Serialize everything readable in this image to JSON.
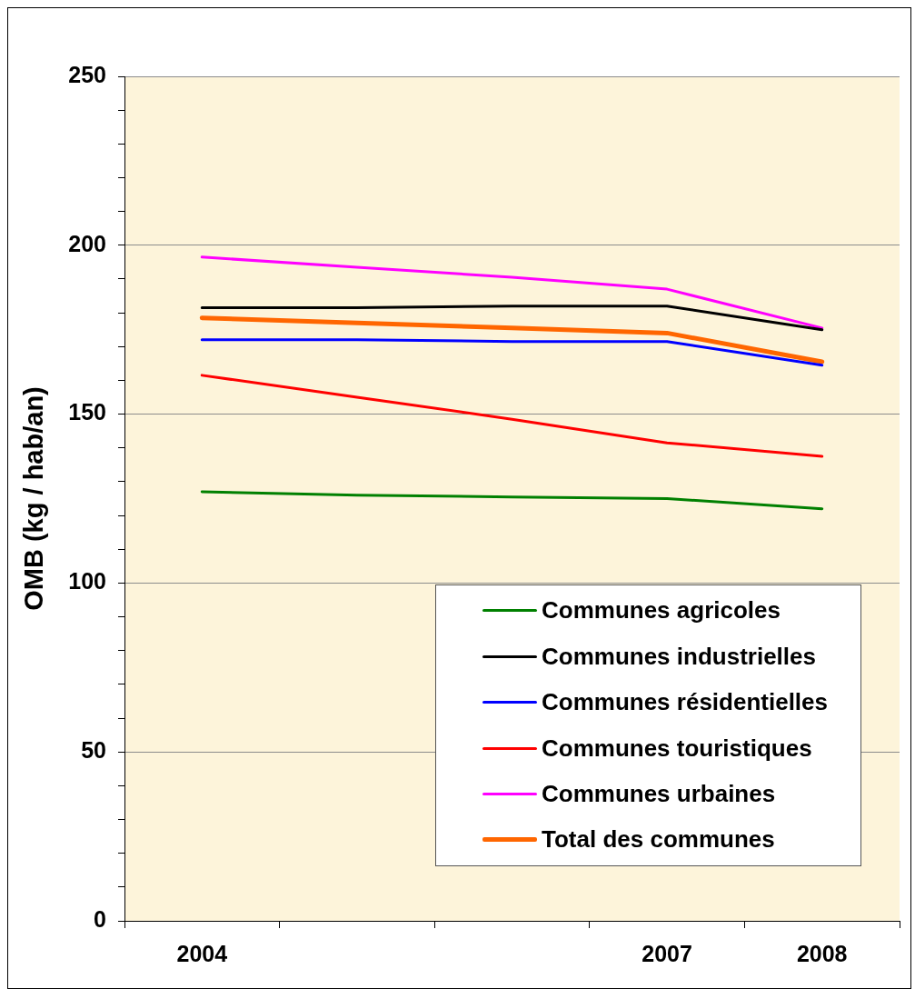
{
  "chart_data": {
    "type": "line",
    "ylabel": "OMB (kg / hab/an)",
    "categories": [
      "2004",
      null,
      null,
      "2007",
      "2008"
    ],
    "series": [
      {
        "name": "Communes agricoles",
        "color": "#008000",
        "values": [
          127,
          126,
          125.5,
          125,
          122
        ]
      },
      {
        "name": "Communes industrielles",
        "color": "#000000",
        "values": [
          181.5,
          181.5,
          182,
          182,
          175
        ]
      },
      {
        "name": "Communes résidentielles",
        "color": "#0000ff",
        "values": [
          172,
          172,
          171.5,
          171.5,
          164.5
        ]
      },
      {
        "name": "Communes touristiques",
        "color": "#ff0000",
        "values": [
          161.5,
          155,
          148.5,
          141.5,
          137.5
        ]
      },
      {
        "name": "Communes urbaines",
        "color": "#ff00ff",
        "values": [
          196.5,
          193.5,
          190.5,
          187,
          175.5
        ]
      },
      {
        "name": "Total des communes",
        "color": "#ff6600",
        "values": [
          178.5,
          177,
          175.5,
          174,
          165.5
        ]
      }
    ],
    "ylim": [
      0,
      250
    ],
    "yticks": [
      0,
      {
        "value": 10,
        "label": null
      },
      {
        "value": 20,
        "label": null
      },
      {
        "value": 30,
        "label": null
      },
      {
        "value": 40,
        "label": null
      },
      50,
      {
        "value": 60,
        "label": null
      },
      {
        "value": 70,
        "label": null
      },
      {
        "value": 80,
        "label": null
      },
      {
        "value": 90,
        "label": null
      },
      100,
      {
        "value": 110,
        "label": null
      },
      {
        "value": 120,
        "label": null
      },
      {
        "value": 130,
        "label": null
      },
      {
        "value": 140,
        "label": null
      },
      150,
      {
        "value": 160,
        "label": null
      },
      {
        "value": 170,
        "label": null
      },
      {
        "value": 180,
        "label": null
      },
      {
        "value": 190,
        "label": null
      },
      200,
      {
        "value": 210,
        "label": null
      },
      {
        "value": 220,
        "label": null
      },
      {
        "value": 230,
        "label": null
      },
      {
        "value": 240,
        "label": null
      },
      250
    ],
    "grid": "y",
    "legend": "bottom right",
    "marker": "none"
  }
}
